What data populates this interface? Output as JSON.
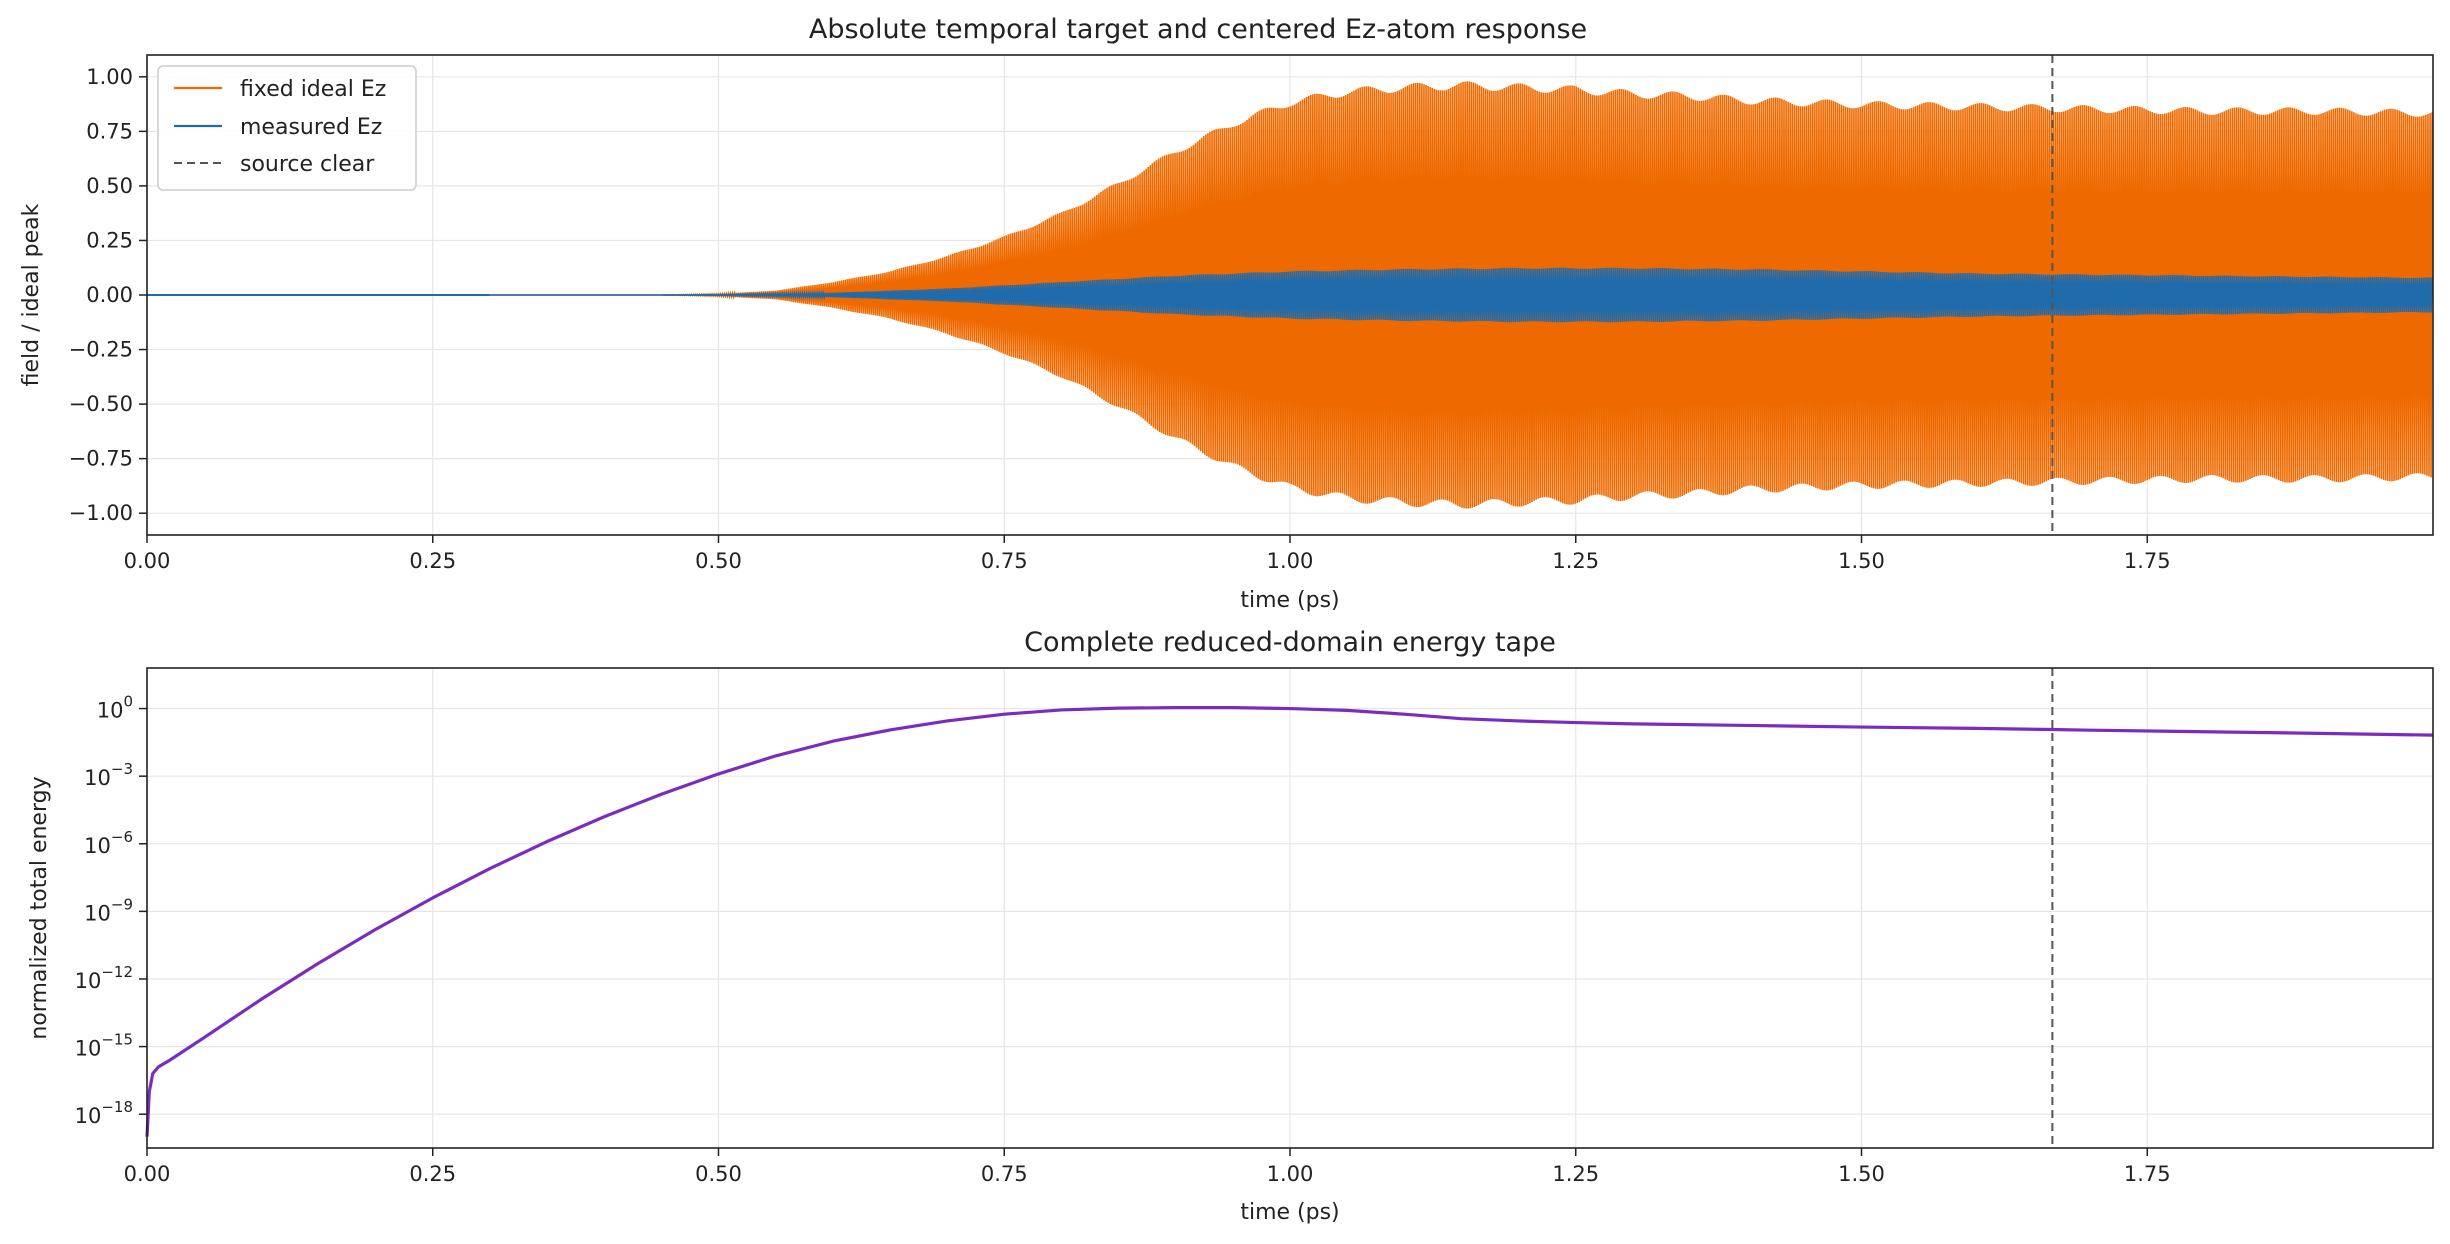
{
  "chart_data": [
    {
      "type": "line",
      "title": "Absolute temporal target and centered Ez-atom response",
      "xlabel": "time (ps)",
      "ylabel": "field / ideal peak",
      "xlim": [
        0,
        2.0
      ],
      "ylim": [
        -1.1,
        1.1
      ],
      "x_ticks": [
        "0.00",
        "0.25",
        "0.50",
        "0.75",
        "1.00",
        "1.25",
        "1.50",
        "1.75"
      ],
      "y_ticks": [
        "−1.00",
        "−0.75",
        "−0.50",
        "−0.25",
        "0.00",
        "0.25",
        "0.50",
        "0.75",
        "1.00"
      ],
      "grid": true,
      "legend_position": "top-left",
      "series": [
        {
          "name": "fixed ideal Ez",
          "color": "#ee6a00",
          "style": "oscillation envelope",
          "envelope_x": [
            0.0,
            0.45,
            0.5,
            0.55,
            0.6,
            0.65,
            0.7,
            0.75,
            0.8,
            0.85,
            0.9,
            0.95,
            1.0,
            1.05,
            1.1,
            1.15,
            1.2,
            1.25,
            1.3,
            1.35,
            1.4,
            1.5,
            1.6,
            1.7,
            1.8,
            1.9,
            2.0
          ],
          "envelope_y": [
            0.0,
            0.0,
            0.005,
            0.02,
            0.06,
            0.11,
            0.18,
            0.27,
            0.38,
            0.52,
            0.67,
            0.8,
            0.9,
            0.95,
            0.97,
            0.98,
            0.97,
            0.96,
            0.94,
            0.93,
            0.91,
            0.89,
            0.88,
            0.87,
            0.86,
            0.86,
            0.85
          ]
        },
        {
          "name": "measured Ez",
          "color": "#1f6bab",
          "style": "oscillation envelope",
          "envelope_x": [
            0.0,
            0.45,
            0.5,
            0.6,
            0.7,
            0.8,
            0.9,
            1.0,
            1.1,
            1.2,
            1.3,
            1.4,
            1.5,
            1.6,
            1.7,
            1.8,
            1.9,
            2.0
          ],
          "envelope_y": [
            0.0,
            0.0,
            0.002,
            0.01,
            0.03,
            0.06,
            0.09,
            0.11,
            0.12,
            0.125,
            0.125,
            0.12,
            0.11,
            0.1,
            0.095,
            0.09,
            0.085,
            0.08
          ]
        },
        {
          "name": "source clear",
          "color": "#555555",
          "style": "dashed vertical line",
          "x": 1.667
        }
      ]
    },
    {
      "type": "line",
      "title": "Complete reduced-domain energy tape",
      "xlabel": "time (ps)",
      "ylabel": "normalized total energy",
      "xlim": [
        0,
        2.0
      ],
      "ylim_log10": [
        -19.5,
        1.8
      ],
      "yscale": "log",
      "x_ticks": [
        "0.00",
        "0.25",
        "0.50",
        "0.75",
        "1.00",
        "1.25",
        "1.50",
        "1.75"
      ],
      "y_ticks": [
        {
          "base": "10",
          "exp": "−18"
        },
        {
          "base": "10",
          "exp": "−15"
        },
        {
          "base": "10",
          "exp": "−12"
        },
        {
          "base": "10",
          "exp": "−9"
        },
        {
          "base": "10",
          "exp": "−6"
        },
        {
          "base": "10",
          "exp": "−3"
        },
        {
          "base": "10",
          "exp": "0"
        }
      ],
      "grid": true,
      "series": [
        {
          "name": "",
          "color": "#7b2cbf",
          "x": [
            0.0,
            0.002,
            0.005,
            0.01,
            0.02,
            0.05,
            0.1,
            0.15,
            0.2,
            0.25,
            0.3,
            0.35,
            0.4,
            0.45,
            0.5,
            0.55,
            0.6,
            0.65,
            0.7,
            0.75,
            0.8,
            0.85,
            0.9,
            0.95,
            1.0,
            1.05,
            1.1,
            1.15,
            1.2,
            1.25,
            1.3,
            1.4,
            1.5,
            1.6,
            1.667,
            1.7,
            1.8,
            1.9,
            2.0
          ],
          "y_log10": [
            -19.0,
            -17.0,
            -16.2,
            -15.9,
            -15.6,
            -14.6,
            -12.9,
            -11.3,
            -9.8,
            -8.4,
            -7.1,
            -5.9,
            -4.8,
            -3.8,
            -2.9,
            -2.1,
            -1.45,
            -0.95,
            -0.55,
            -0.25,
            -0.06,
            0.02,
            0.04,
            0.04,
            0.0,
            -0.08,
            -0.25,
            -0.45,
            -0.55,
            -0.62,
            -0.68,
            -0.75,
            -0.82,
            -0.88,
            -0.93,
            -0.96,
            -1.03,
            -1.1,
            -1.18
          ]
        },
        {
          "name": "source clear",
          "color": "#555555",
          "style": "dashed vertical line",
          "x": 1.667
        }
      ]
    }
  ]
}
